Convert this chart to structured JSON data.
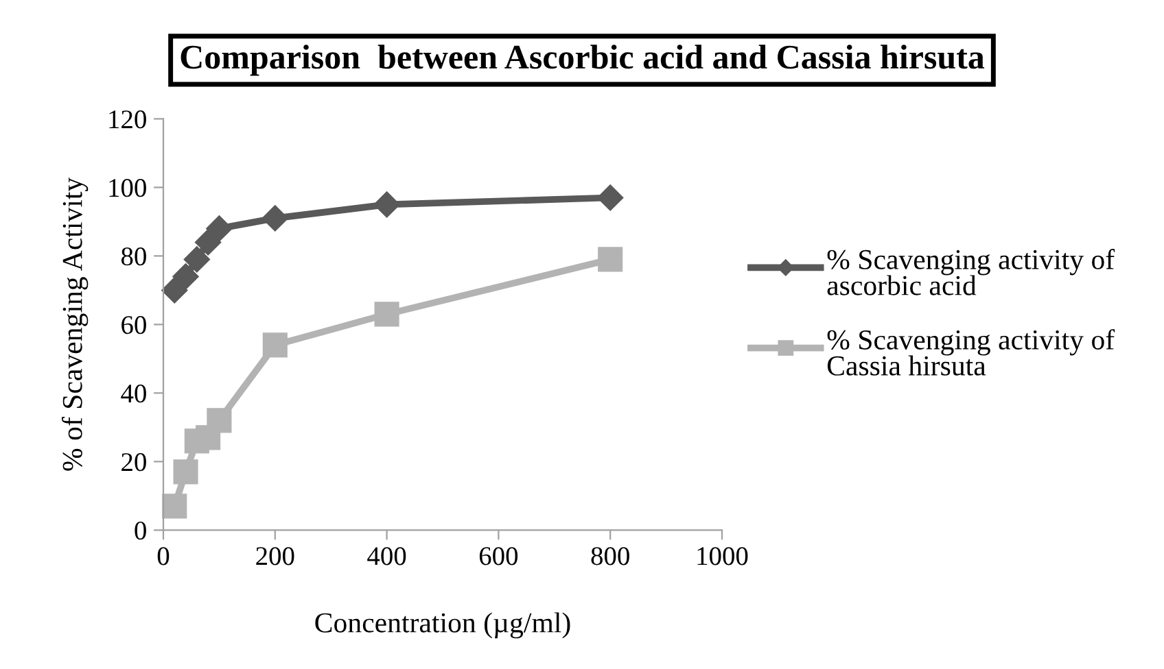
{
  "chart_data": {
    "type": "line",
    "title": "Comparison  between Ascorbic acid and Cassia hirsuta",
    "xlabel": "Concentration (µg/ml)",
    "ylabel": "% of Scavenging Activity",
    "x": [
      20,
      40,
      60,
      80,
      100,
      200,
      400,
      800
    ],
    "series": [
      {
        "name": "% Scavenging activity of ascorbic acid",
        "color": "#595959",
        "marker": "diamond",
        "values": [
          70,
          74,
          79,
          84,
          88,
          91,
          95,
          97
        ]
      },
      {
        "name": "% Scavenging activity of Cassia hirsuta",
        "color": "#b3b3b3",
        "marker": "square",
        "values": [
          7,
          17,
          26,
          27,
          32,
          54,
          63,
          79
        ]
      }
    ],
    "xlim": [
      0,
      1000
    ],
    "xticks": [
      0,
      200,
      400,
      600,
      800,
      1000
    ],
    "ylim": [
      0,
      120
    ],
    "yticks": [
      0,
      20,
      40,
      60,
      80,
      100,
      120
    ],
    "grid": false,
    "legend": "right",
    "line_style": "solid"
  }
}
